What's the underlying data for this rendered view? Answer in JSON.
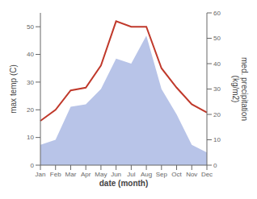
{
  "chart_data": {
    "type": "line",
    "xlabel": "date (month)",
    "ylabel": "max temp (C)",
    "y2label": "med. precipitation\n(kg/m2)",
    "categories": [
      "Jan",
      "Feb",
      "Mar",
      "Apr",
      "May",
      "Jun",
      "Jul",
      "Aug",
      "Sep",
      "Oct",
      "Nov",
      "Dec"
    ],
    "series": [
      {
        "type": "area",
        "axis": "y2",
        "color": "#b8c4e8",
        "values": [
          8,
          10,
          23,
          24,
          30,
          42,
          40,
          51,
          30,
          20,
          8,
          5
        ]
      },
      {
        "type": "line",
        "color": "#c0392b",
        "values": [
          16,
          20,
          27,
          28,
          36,
          52,
          50,
          50,
          35,
          28,
          22,
          19
        ]
      }
    ],
    "ylim": [
      0,
      55
    ],
    "yticks": [
      0,
      10,
      20,
      30,
      40,
      50
    ],
    "y2lim": [
      0,
      60
    ],
    "y2ticks": [
      0,
      10,
      20,
      30,
      40,
      50,
      60
    ],
    "grid": false
  }
}
